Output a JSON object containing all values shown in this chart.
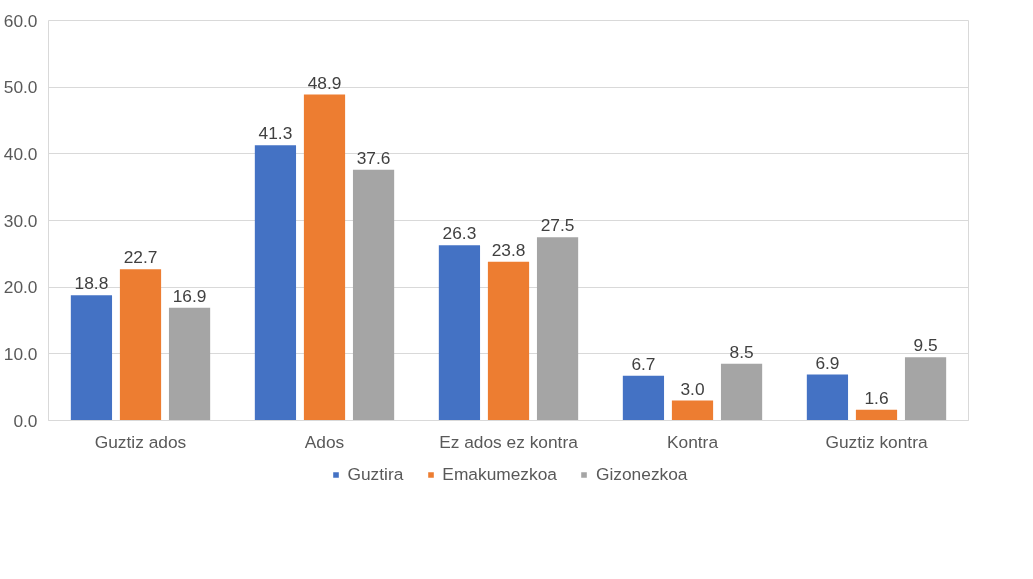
{
  "chart_data": {
    "type": "bar",
    "categories": [
      "Guztiz ados",
      "Ados",
      "Ez ados ez kontra",
      "Kontra",
      "Guztiz kontra"
    ],
    "series": [
      {
        "name": "Guztira",
        "color": "#4472c4",
        "values": [
          18.8,
          41.3,
          26.3,
          6.7,
          6.9
        ],
        "value_labels": [
          "18.8",
          "41.3",
          "26.3",
          "6.7",
          "6.9"
        ]
      },
      {
        "name": "Emakumezkoa",
        "color": "#ed7d31",
        "values": [
          22.7,
          48.9,
          23.8,
          3.0,
          1.6
        ],
        "value_labels": [
          "22.7",
          "48.9",
          "23.8",
          "3.0",
          "1.6"
        ]
      },
      {
        "name": "Gizonezkoa",
        "color": "#a5a5a5",
        "values": [
          16.9,
          37.6,
          27.5,
          8.5,
          9.5
        ],
        "value_labels": [
          "16.9",
          "37.6",
          "27.5",
          "8.5",
          "9.5"
        ]
      }
    ],
    "ylim": [
      0,
      60
    ],
    "yticks": [
      {
        "value": 0,
        "label": "0.0"
      },
      {
        "value": 10,
        "label": "10.0"
      },
      {
        "value": 20,
        "label": "20.0"
      },
      {
        "value": 30,
        "label": "30.0"
      },
      {
        "value": 40,
        "label": "40.0"
      },
      {
        "value": 50,
        "label": "50.0"
      },
      {
        "value": 60,
        "label": "60.0"
      }
    ],
    "grid": "y",
    "legend": "bottom"
  }
}
